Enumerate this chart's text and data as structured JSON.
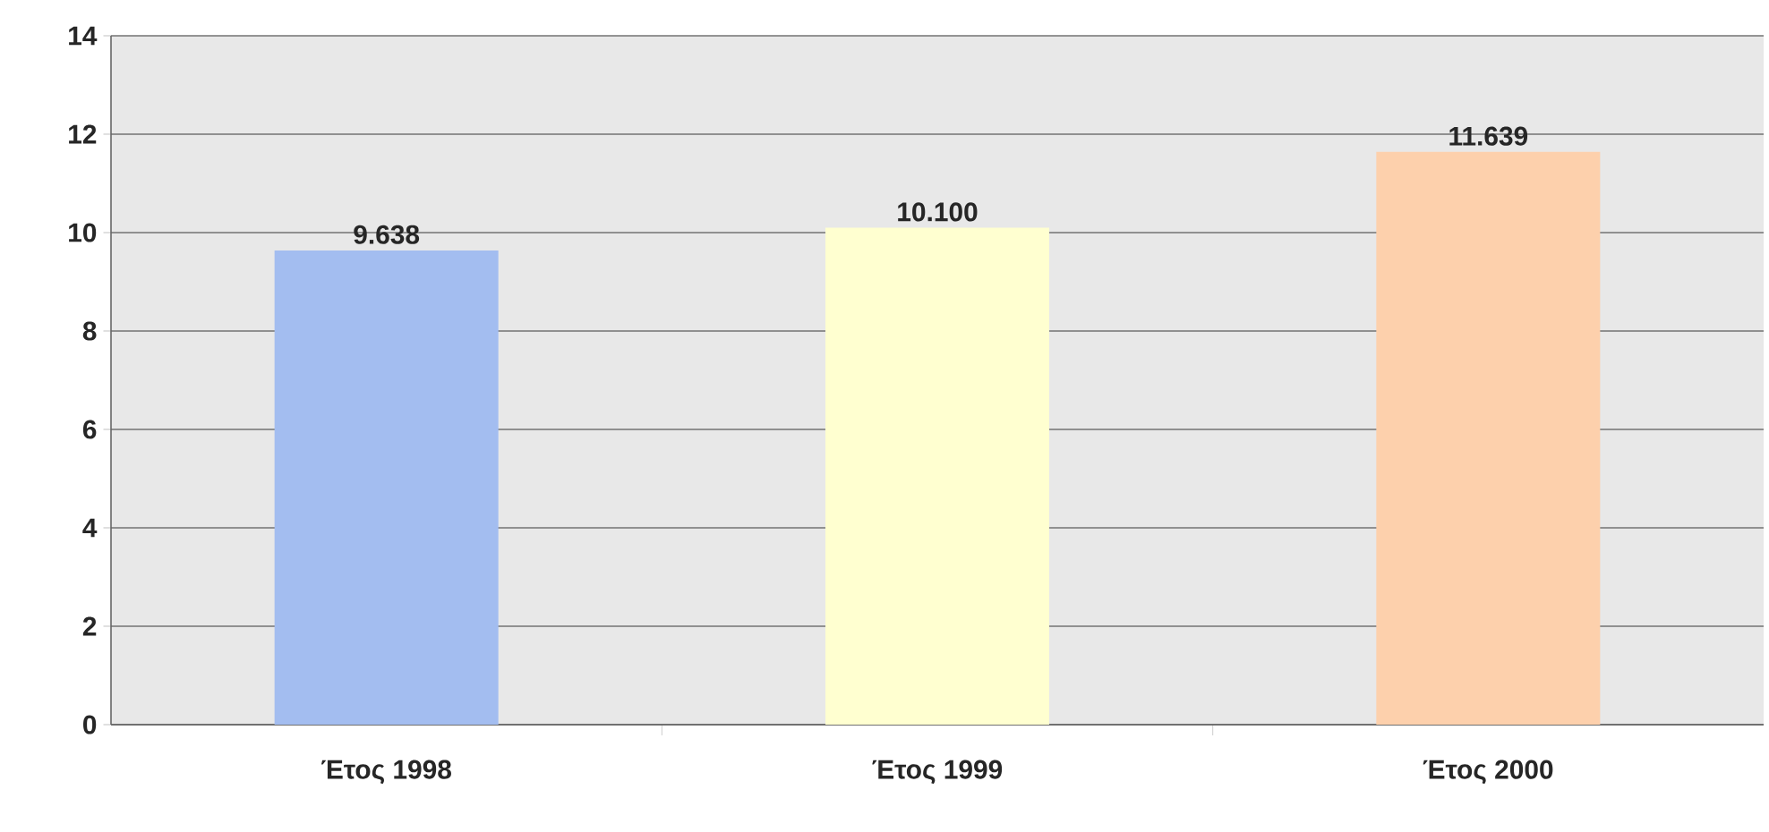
{
  "chart_data": {
    "type": "bar",
    "categories": [
      "Έτος 1998",
      "Έτος 1999",
      "Έτος 2000"
    ],
    "values": [
      9.638,
      10.1,
      11.639
    ],
    "value_labels": [
      "9.638",
      "10.100",
      "11.639"
    ],
    "colors": [
      "#a3bdf0",
      "#ffffd0",
      "#fdd0ac"
    ],
    "ylim": [
      0,
      14
    ],
    "yticks": [
      0,
      2,
      4,
      6,
      8,
      10,
      12,
      14
    ],
    "grid": "y"
  }
}
